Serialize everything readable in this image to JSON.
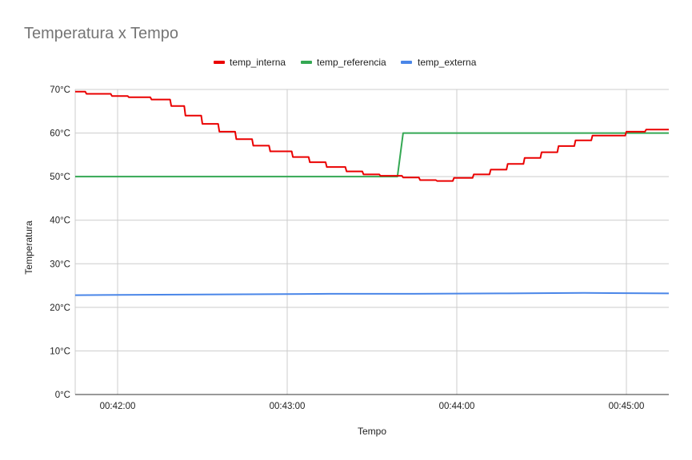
{
  "chart_data": {
    "type": "line",
    "title": "Temperatura x Tempo",
    "xlabel": "Tempo",
    "ylabel": "Temperatura",
    "x_range": [
      "00:41:45",
      "00:45:15"
    ],
    "ylim": [
      0,
      70
    ],
    "y_ticks": [
      0,
      10,
      20,
      30,
      40,
      50,
      60,
      70
    ],
    "y_tick_labels": [
      "0°C",
      "10°C",
      "20°C",
      "30°C",
      "40°C",
      "50°C",
      "60°C",
      "70°C"
    ],
    "x_tick_values": [
      "00:42:00",
      "00:43:00",
      "00:44:00",
      "00:45:00"
    ],
    "x_tick_labels": [
      "00:42:00",
      "00:43:00",
      "00:44:00",
      "00:45:00"
    ],
    "grid": true,
    "legend_position": "top",
    "series": [
      {
        "name": "temp_interna",
        "color": "#ea0000",
        "shape": "step",
        "points": [
          [
            "00:41:45",
            69.5
          ],
          [
            "00:41:49",
            69.0
          ],
          [
            "00:41:58",
            68.5
          ],
          [
            "00:42:04",
            68.2
          ],
          [
            "00:42:12",
            67.7
          ],
          [
            "00:42:19",
            66.2
          ],
          [
            "00:42:24",
            64.0
          ],
          [
            "00:42:30",
            62.1
          ],
          [
            "00:42:36",
            60.3
          ],
          [
            "00:42:42",
            58.6
          ],
          [
            "00:42:48",
            57.1
          ],
          [
            "00:42:54",
            55.8
          ],
          [
            "00:43:02",
            54.5
          ],
          [
            "00:43:08",
            53.3
          ],
          [
            "00:43:14",
            52.2
          ],
          [
            "00:43:21",
            51.2
          ],
          [
            "00:43:27",
            50.5
          ],
          [
            "00:43:33",
            50.2
          ],
          [
            "00:43:41",
            49.8
          ],
          [
            "00:43:47",
            49.2
          ],
          [
            "00:43:53",
            49.0
          ],
          [
            "00:43:59",
            49.7
          ],
          [
            "00:44:06",
            50.5
          ],
          [
            "00:44:12",
            51.6
          ],
          [
            "00:44:18",
            52.9
          ],
          [
            "00:44:24",
            54.3
          ],
          [
            "00:44:30",
            55.6
          ],
          [
            "00:44:36",
            57.0
          ],
          [
            "00:44:42",
            58.3
          ],
          [
            "00:44:48",
            59.4
          ],
          [
            "00:45:00",
            60.3
          ],
          [
            "00:45:07",
            60.8
          ],
          [
            "00:45:15",
            60.8
          ]
        ]
      },
      {
        "name": "temp_referencia",
        "color": "#34a853",
        "shape": "line",
        "points": [
          [
            "00:41:45",
            50
          ],
          [
            "00:43:39",
            50
          ],
          [
            "00:43:41",
            60
          ],
          [
            "00:45:15",
            60
          ]
        ]
      },
      {
        "name": "temp_externa",
        "color": "#4a86e8",
        "shape": "line",
        "points": [
          [
            "00:41:45",
            22.8
          ],
          [
            "00:42:15",
            22.9
          ],
          [
            "00:42:45",
            23.0
          ],
          [
            "00:43:15",
            23.1
          ],
          [
            "00:43:45",
            23.1
          ],
          [
            "00:44:15",
            23.2
          ],
          [
            "00:44:45",
            23.3
          ],
          [
            "00:45:15",
            23.2
          ]
        ]
      }
    ]
  }
}
